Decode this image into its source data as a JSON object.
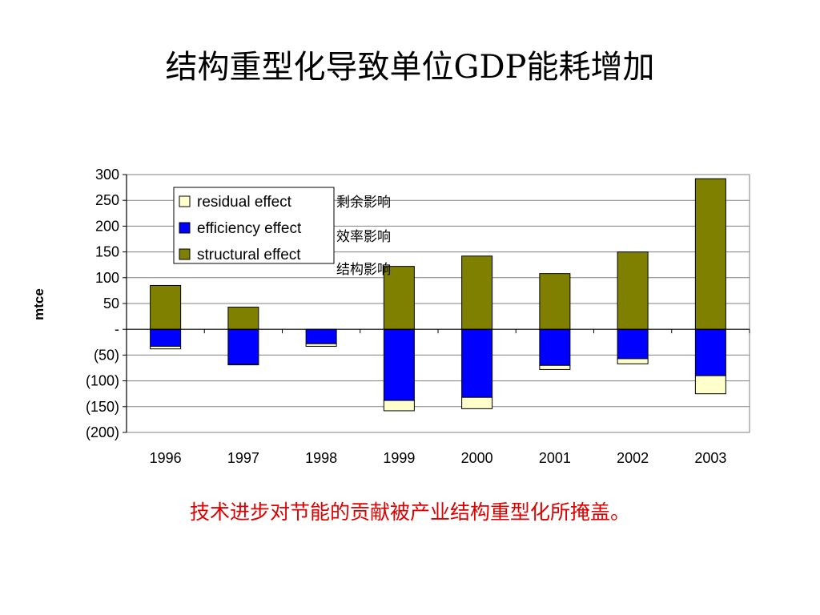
{
  "slide": {
    "title": "结构重型化导致单位GDP能耗增加",
    "footer": "技术进步对节能的贡献被产业结构重型化所掩盖。"
  },
  "annotations": [
    "剩余影响",
    "效率影响",
    "结构影响"
  ],
  "colors": {
    "structural": "#808000",
    "efficiency": "#0000ff",
    "residual": "#ffffcc",
    "footer": "#e00000"
  },
  "chart_data": {
    "type": "bar",
    "stacked": true,
    "categories": [
      "1996",
      "1997",
      "1998",
      "1999",
      "2000",
      "2001",
      "2002",
      "2003"
    ],
    "series": [
      {
        "name": "residual effect",
        "values": [
          -5,
          -1,
          -5,
          -20,
          -22,
          -8,
          -10,
          -35
        ]
      },
      {
        "name": "efficiency effect",
        "values": [
          -33,
          -68,
          -28,
          -138,
          -132,
          -70,
          -57,
          -90
        ]
      },
      {
        "name": "structural effect",
        "values": [
          85,
          43,
          0,
          122,
          142,
          108,
          150,
          292
        ]
      }
    ],
    "ylabel": "mtce",
    "ylim": [
      -200,
      300
    ],
    "yticks": [
      300,
      250,
      200,
      150,
      100,
      50,
      0,
      -50,
      -100,
      -150,
      -200
    ],
    "ytick_labels": [
      "300",
      "250",
      "200",
      "150",
      "100",
      "50",
      "-",
      "(50)",
      "(100)",
      "(150)",
      "(200)"
    ],
    "grid": true,
    "legend_position": "top-left"
  }
}
